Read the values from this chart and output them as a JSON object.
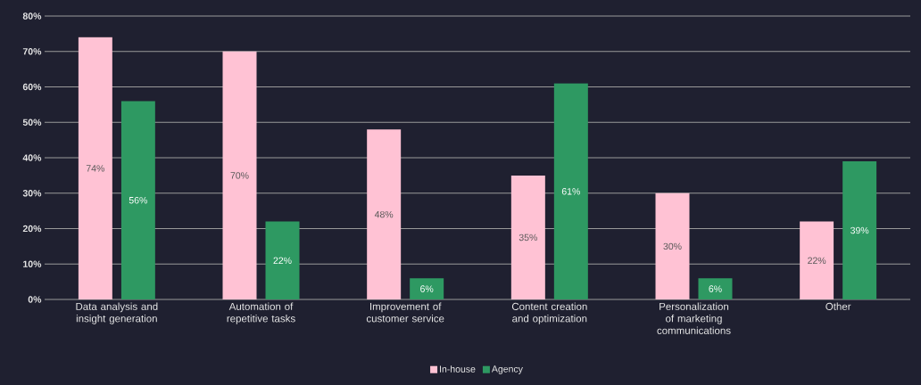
{
  "chart_data": {
    "type": "bar",
    "categories": [
      "Data analysis and insight generation",
      "Automation of repetitive tasks",
      "Improvement of customer service",
      "Content creation and optimization",
      "Personalization of marketing communications",
      "Other"
    ],
    "series": [
      {
        "name": "In-house",
        "color": "#ffc2d4",
        "values": [
          74,
          70,
          48,
          35,
          30,
          22
        ],
        "value_labels": [
          "74%",
          "70%",
          "48%",
          "35%",
          "30%",
          "22%"
        ]
      },
      {
        "name": "Agency",
        "color": "#2e9962",
        "values": [
          56,
          22,
          6,
          61,
          6,
          39
        ],
        "value_labels": [
          "56%",
          "22%",
          "6%",
          "61%",
          "6%",
          "39%"
        ]
      }
    ],
    "ylim": [
      0,
      80
    ],
    "yticks": [
      {
        "value": 0,
        "label": "0%"
      },
      {
        "value": 10,
        "label": "10%"
      },
      {
        "value": 20,
        "label": "20%"
      },
      {
        "value": 30,
        "label": "30%"
      },
      {
        "value": 40,
        "label": "40%"
      },
      {
        "value": 50,
        "label": "50%"
      },
      {
        "value": 60,
        "label": "60%"
      },
      {
        "value": 70,
        "label": "70%"
      },
      {
        "value": 80,
        "label": "80%"
      }
    ],
    "grid": "y",
    "legend": "bottom"
  }
}
